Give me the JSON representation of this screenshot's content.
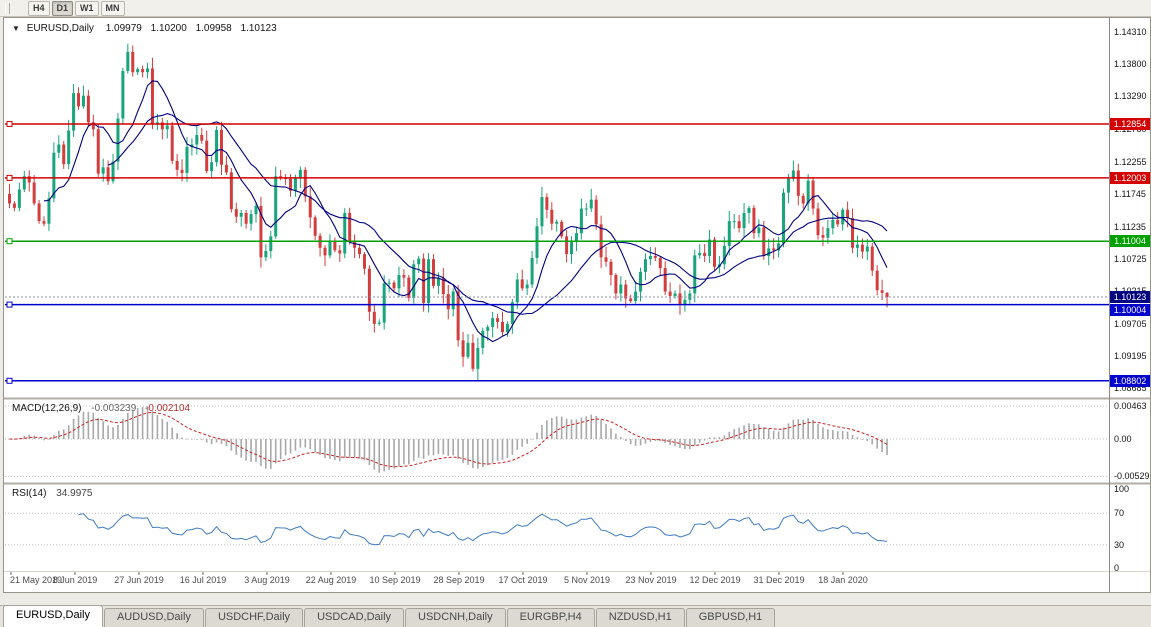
{
  "toolbar": {
    "timeframes": [
      {
        "label": "H4",
        "active": false
      },
      {
        "label": "D1",
        "active": true
      },
      {
        "label": "W1",
        "active": false
      },
      {
        "label": "MN",
        "active": false
      }
    ]
  },
  "chart": {
    "symbol_label": "EURUSD,Daily",
    "ohlc": {
      "open": "1.09979",
      "high": "1.10200",
      "low": "1.09958",
      "close": "1.10123"
    },
    "price_scale": [
      "1.14310",
      "1.13800",
      "1.13290",
      "1.12780",
      "1.12255",
      "1.11745",
      "1.11235",
      "1.10725",
      "1.10215",
      "1.09705",
      "1.09195",
      "1.08685"
    ],
    "levels": [
      {
        "value": "1.12854",
        "price": 1.12854,
        "color": "#d40000"
      },
      {
        "value": "1.12003",
        "price": 1.12003,
        "color": "#d40000"
      },
      {
        "value": "1.11004",
        "price": 1.11004,
        "color": "#00a000"
      },
      {
        "value": "1.10004",
        "price": 1.10004,
        "color": "#0000cc"
      },
      {
        "value": "1.08802",
        "price": 1.08802,
        "color": "#0000cc"
      }
    ],
    "current_price": {
      "value": "1.10123",
      "price": 1.10123,
      "color": "#000080"
    },
    "dates": [
      "21 May 2019",
      "8 Jun 2019",
      "27 Jun 2019",
      "16 Jul 2019",
      "3 Aug 2019",
      "22 Aug 2019",
      "10 Sep 2019",
      "28 Sep 2019",
      "17 Oct 2019",
      "5 Nov 2019",
      "23 Nov 2019",
      "12 Dec 2019",
      "31 Dec 2019",
      "18 Jan 2020"
    ],
    "colors": {
      "up": "#18a57b",
      "down": "#d23e3e",
      "ma": "#000080",
      "macd_hist": "#a8a8a8",
      "macd_signal": "#cc2222",
      "rsi": "#3f7cc0"
    }
  },
  "indicators": {
    "macd": {
      "label": "MACD(12,26,9)",
      "main_value": "-0.003239",
      "signal_value": "-0.002104",
      "scale": [
        "0.00463",
        "0.00",
        "-0.00529"
      ]
    },
    "rsi": {
      "label": "RSI(14)",
      "value": "34.9975",
      "scale": [
        "100",
        "70",
        "30",
        "0"
      ]
    }
  },
  "tabs": {
    "items": [
      "EURUSD,Daily",
      "AUDUSD,Daily",
      "USDCHF,Daily",
      "USDCAD,Daily",
      "USDCNH,Daily",
      "EURGBP,H4",
      "NZDUSD,H1",
      "GBPUSD,H1"
    ],
    "active_index": 0
  },
  "chart_data": {
    "type": "candlestick",
    "symbol": "EURUSD",
    "timeframe": "Daily",
    "y_axis": {
      "min": 1.0853,
      "max": 1.1451
    },
    "open0": 1.1175,
    "closes": [
      1.116,
      1.1153,
      1.1182,
      1.1203,
      1.1193,
      1.116,
      1.1132,
      1.1128,
      1.1168,
      1.124,
      1.1253,
      1.1222,
      1.1275,
      1.1334,
      1.1313,
      1.133,
      1.1288,
      1.1277,
      1.1207,
      1.1217,
      1.1195,
      1.1226,
      1.1294,
      1.1369,
      1.1399,
      1.1367,
      1.1372,
      1.1367,
      1.1373,
      1.1285,
      1.1288,
      1.1277,
      1.1283,
      1.1227,
      1.1213,
      1.1208,
      1.1249,
      1.1253,
      1.1268,
      1.1259,
      1.1211,
      1.1225,
      1.1276,
      1.1221,
      1.1209,
      1.1151,
      1.1139,
      1.1145,
      1.1128,
      1.1143,
      1.1156,
      1.1075,
      1.1085,
      1.1108,
      1.1203,
      1.12,
      1.1199,
      1.118,
      1.12,
      1.1213,
      1.1171,
      1.1138,
      1.1109,
      1.109,
      1.1078,
      1.11,
      1.1086,
      1.1081,
      1.1145,
      1.1101,
      1.109,
      1.108,
      1.1057,
      1.0989,
      1.097,
      1.0972,
      1.1034,
      1.1035,
      1.1026,
      1.1047,
      1.1043,
      1.1011,
      1.1064,
      1.1073,
      1.1003,
      1.1072,
      1.103,
      1.1042,
      1.1017,
      1.0993,
      1.1021,
      1.0944,
      1.0918,
      1.094,
      1.0899,
      1.0932,
      1.0959,
      1.0965,
      1.0979,
      1.0973,
      1.0957,
      1.097,
      1.1004,
      1.104,
      1.1026,
      1.1032,
      1.1074,
      1.1124,
      1.117,
      1.115,
      1.1128,
      1.1131,
      1.1108,
      1.108,
      1.1099,
      1.1113,
      1.1152,
      1.1152,
      1.1166,
      1.1127,
      1.1075,
      1.1068,
      1.1047,
      1.1018,
      1.1032,
      1.101,
      1.1006,
      1.1021,
      1.1052,
      1.1072,
      1.1077,
      1.1074,
      1.1058,
      1.1021,
      1.1014,
      1.1018,
      1.1001,
      1.1008,
      1.1018,
      1.1078,
      1.1082,
      1.1077,
      1.1103,
      1.106,
      1.1064,
      1.1093,
      1.1132,
      1.1132,
      1.1121,
      1.1145,
      1.1153,
      1.1113,
      1.1122,
      1.1077,
      1.1089,
      1.1086,
      1.1097,
      1.1177,
      1.1199,
      1.1212,
      1.1172,
      1.116,
      1.1196,
      1.1152,
      1.111,
      1.1106,
      1.1121,
      1.1134,
      1.1127,
      1.115,
      1.1137,
      1.109,
      1.1095,
      1.1084,
      1.1092,
      1.1054,
      1.1023,
      1.1019,
      1.10123
    ],
    "wick_overrides": {
      "24": {
        "high": 1.1412
      },
      "95": {
        "low": 1.0879
      },
      "178": {
        "high": 1.102,
        "low": 1.0996
      }
    }
  }
}
